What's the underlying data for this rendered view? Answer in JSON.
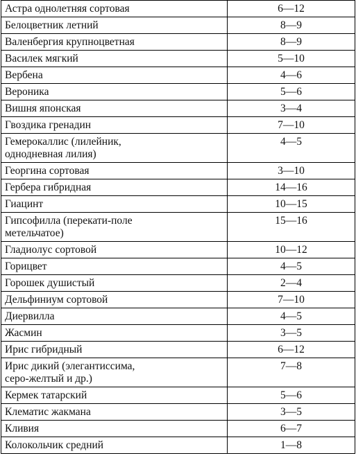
{
  "rows": [
    {
      "name": "Астра однолетняя сортовая",
      "days": "6—12"
    },
    {
      "name": "Белоцветник летний",
      "days": "8—9"
    },
    {
      "name": "Валенбергия крупноцветная",
      "days": "8—9"
    },
    {
      "name": "Василек мягкий",
      "days": "5—10"
    },
    {
      "name": "Вербена",
      "days": "4—6"
    },
    {
      "name": "Вероника",
      "days": "5—6"
    },
    {
      "name": "Вишня японская",
      "days": "3—4"
    },
    {
      "name": "Гвоздика гренадин",
      "days": "7—10"
    },
    {
      "name": "Гемерокаллис (лилейник,\nоднодневная лилия)",
      "days": "4—5"
    },
    {
      "name": "Георгина сортовая",
      "days": "3—10"
    },
    {
      "name": "Гербера гибридная",
      "days": "14—16"
    },
    {
      "name": "Гиацинт",
      "days": "10—15"
    },
    {
      "name": "Гипсофилла (перекати-поле\nметельчатое)",
      "days": "15—16"
    },
    {
      "name": "Гладиолус сортовой",
      "days": "10—12"
    },
    {
      "name": "Горицвет",
      "days": "4—5"
    },
    {
      "name": "Горошек душистый",
      "days": "2—4"
    },
    {
      "name": "Дельфиниум сортовой",
      "days": "7—10"
    },
    {
      "name": "Диервилла",
      "days": "4—5"
    },
    {
      "name": "Жасмин",
      "days": "3—5"
    },
    {
      "name": "Ирис гибридный",
      "days": "6—12"
    },
    {
      "name": "Ирис дикий (элегантиссима,\nсеро-желтый и др.)",
      "days": "7—8"
    },
    {
      "name": "Кермек татарский",
      "days": "5—6"
    },
    {
      "name": "Клематис жакмана",
      "days": "3—5"
    },
    {
      "name": "Кливия",
      "days": "6—7"
    },
    {
      "name": "Колокольчик средний",
      "days": "1—8"
    }
  ]
}
